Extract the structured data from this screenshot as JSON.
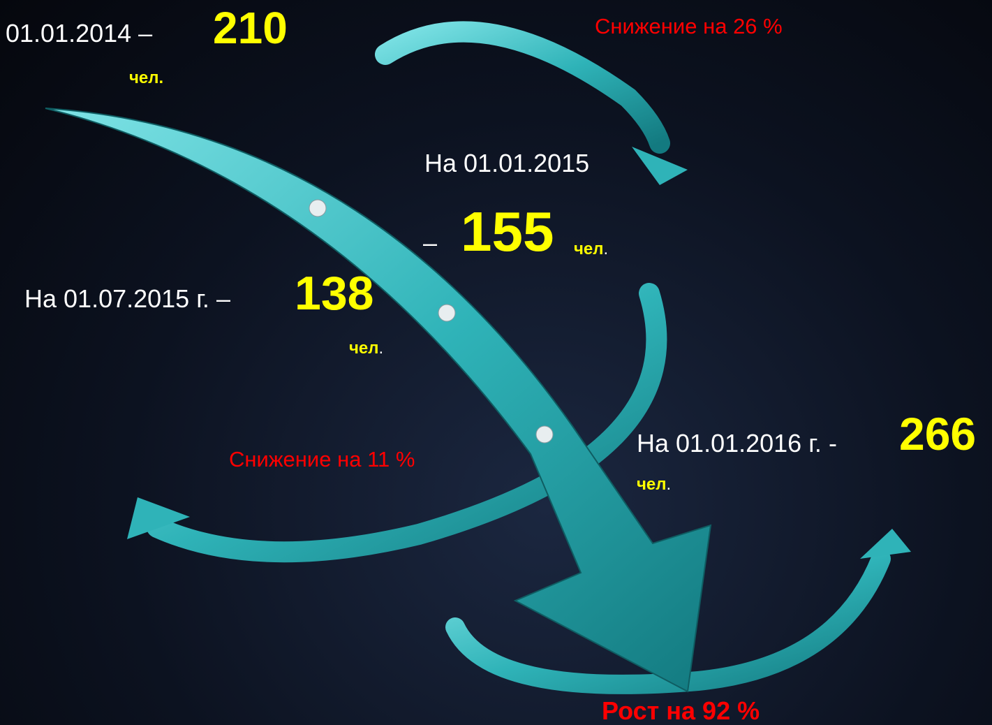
{
  "points": [
    {
      "label": "01.01.2014 –",
      "value": "210",
      "unit": "чел."
    },
    {
      "label": "На 01.01.2015",
      "dash": "–",
      "value": "155",
      "unit": "чел",
      "punct": "."
    },
    {
      "label": "На 01.07.2015 г. –",
      "value": "138",
      "unit": "чел",
      "punct": "."
    },
    {
      "label": "На 01.01.2016 г. -",
      "value": "266",
      "unit": "чел",
      "punct": "."
    }
  ],
  "changes": [
    "Снижение на 26 %",
    "Снижение на 11 %",
    "Рост на 92 %"
  ]
}
